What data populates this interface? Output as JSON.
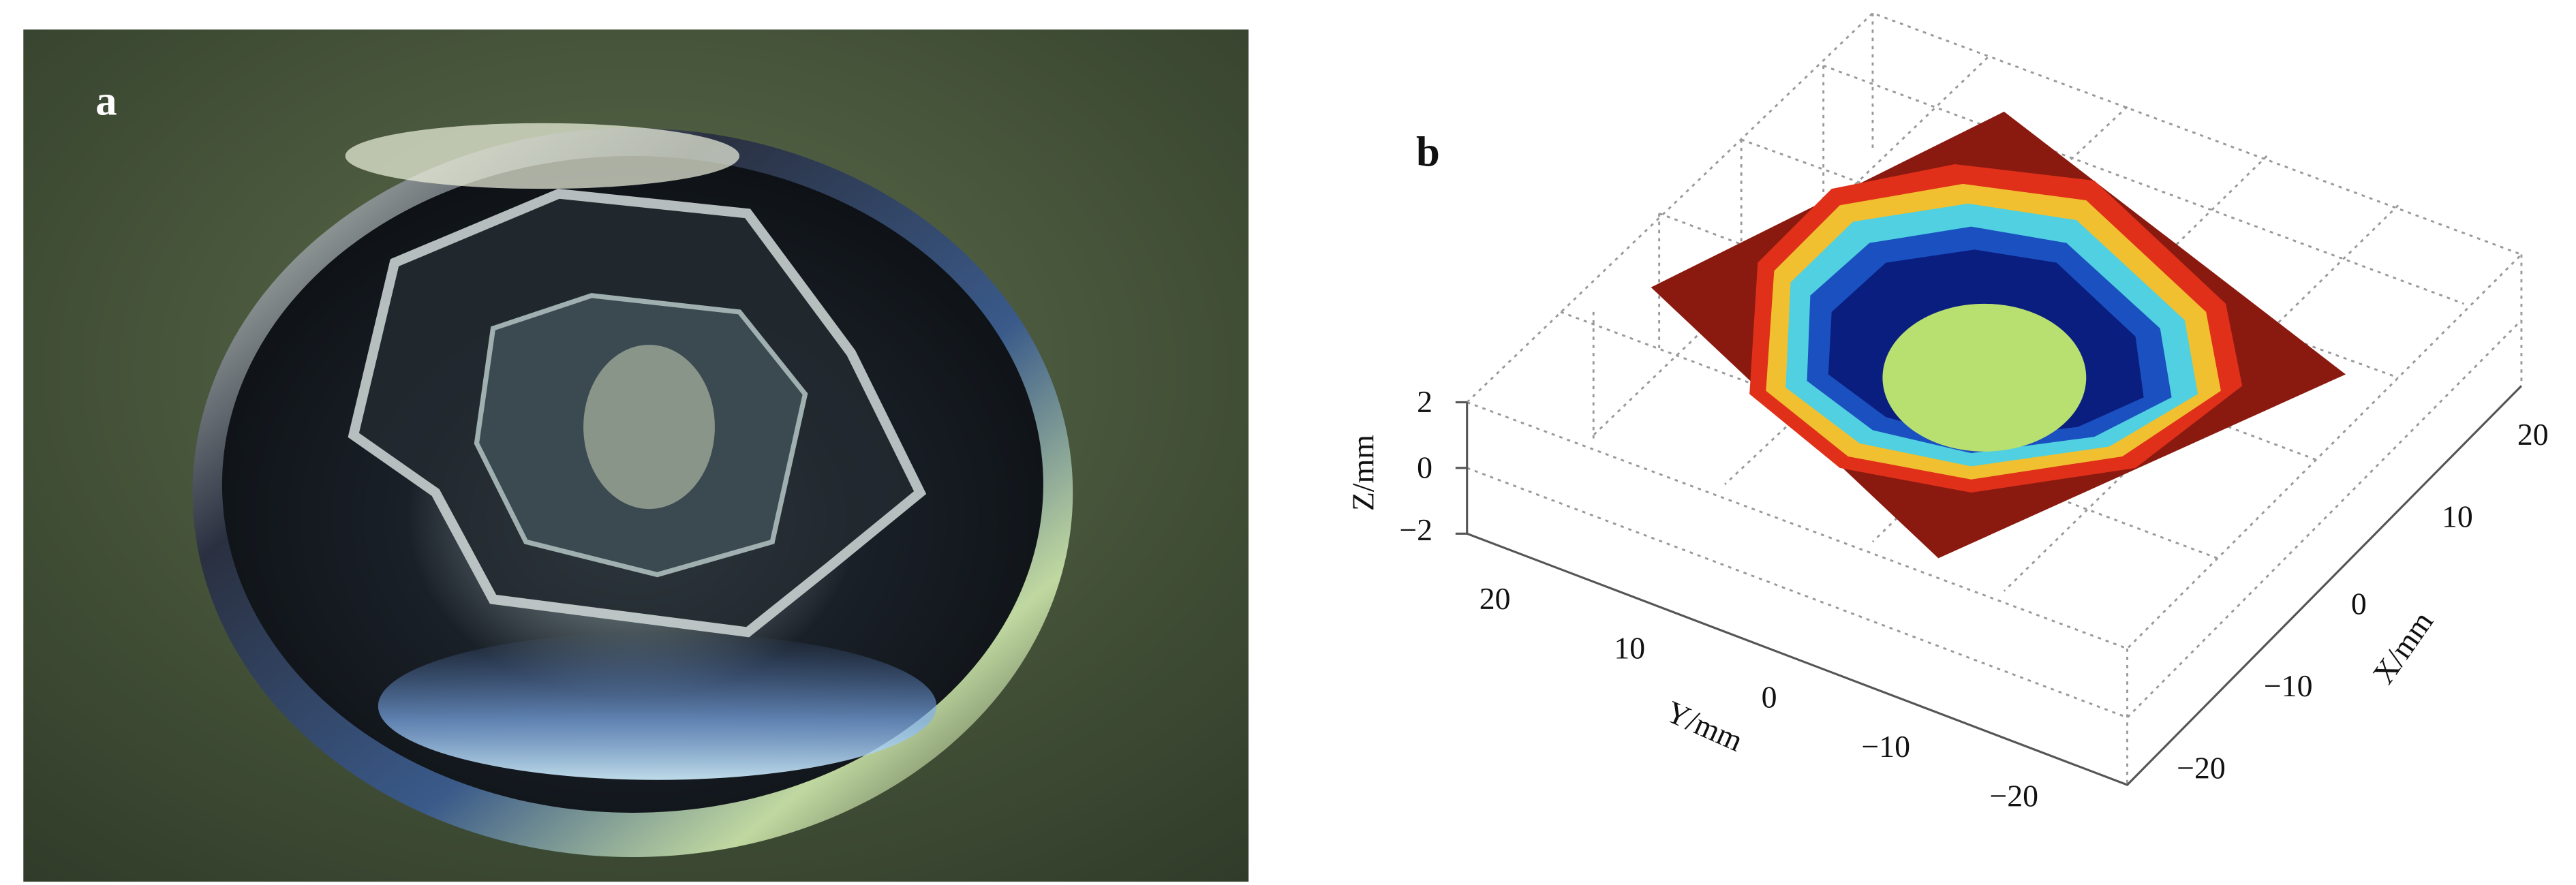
{
  "panel_a": {
    "label": "a"
  },
  "panel_b": {
    "label": "b",
    "z_axis": {
      "label": "Z/mm",
      "ticks": [
        "2",
        "0",
        "−2"
      ]
    },
    "y_axis": {
      "label": "Y/mm",
      "ticks": [
        "20",
        "10",
        "0",
        "−10",
        "−20"
      ]
    },
    "x_axis": {
      "label": "X/mm",
      "ticks": [
        "20",
        "10",
        "0",
        "−10",
        "−20"
      ]
    }
  }
}
